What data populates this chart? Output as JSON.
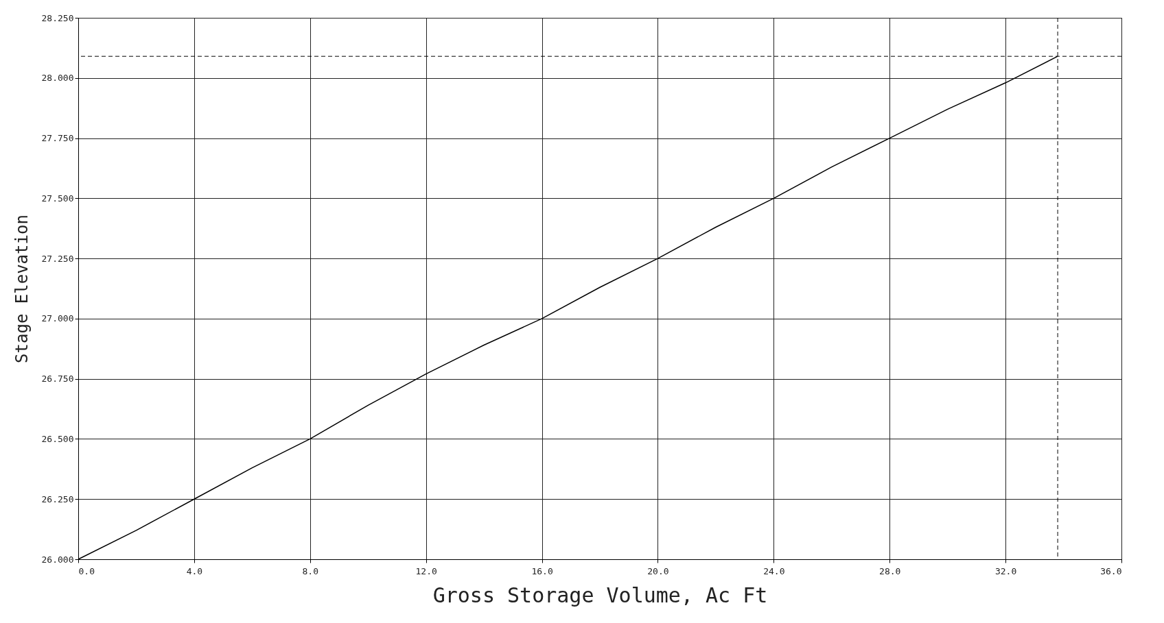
{
  "chart_data": {
    "type": "line",
    "xlabel": "Gross Storage Volume, Ac Ft",
    "ylabel": "Stage Elevation",
    "x": [
      0,
      2,
      4,
      6,
      8,
      10,
      12,
      14,
      16,
      18,
      20,
      22,
      24,
      26,
      28,
      30,
      32,
      33.8
    ],
    "series": [
      {
        "color": "#000000",
        "values": [
          26.0,
          26.12,
          26.25,
          26.38,
          26.5,
          26.64,
          26.77,
          26.89,
          27.0,
          27.13,
          27.25,
          27.38,
          27.5,
          27.63,
          27.75,
          27.87,
          27.98,
          28.09
        ]
      }
    ],
    "xlim": [
      0,
      36
    ],
    "ylim": [
      26,
      28.25
    ],
    "xticks": [
      {
        "value": 0,
        "label": "0.0"
      },
      {
        "value": 4,
        "label": "4.0"
      },
      {
        "value": 8,
        "label": "8.0"
      },
      {
        "value": 12,
        "label": "12.0"
      },
      {
        "value": 16,
        "label": "16.0"
      },
      {
        "value": 20,
        "label": "20.0"
      },
      {
        "value": 24,
        "label": "24.0"
      },
      {
        "value": 28,
        "label": "28.0"
      },
      {
        "value": 32,
        "label": "32.0"
      },
      {
        "value": 36,
        "label": "36.0"
      }
    ],
    "yticks": [
      {
        "value": 26,
        "label": "26.000"
      },
      {
        "value": 26.25,
        "label": "26.250"
      },
      {
        "value": 26.5,
        "label": "26.500"
      },
      {
        "value": 26.75,
        "label": "26.750"
      },
      {
        "value": 27,
        "label": "27.000"
      },
      {
        "value": 27.25,
        "label": "27.250"
      },
      {
        "value": 27.5,
        "label": "27.500"
      },
      {
        "value": 27.75,
        "label": "27.750"
      },
      {
        "value": 28,
        "label": "28.000"
      },
      {
        "value": 28.25,
        "label": "28.250"
      }
    ],
    "ref_lines": [
      {
        "axis": "y",
        "value": 28.09,
        "line_style": "dashed"
      },
      {
        "axis": "x",
        "value": 33.8,
        "line_style": "dashed"
      }
    ],
    "grid": true,
    "marker": "none",
    "line_style": "solid"
  }
}
